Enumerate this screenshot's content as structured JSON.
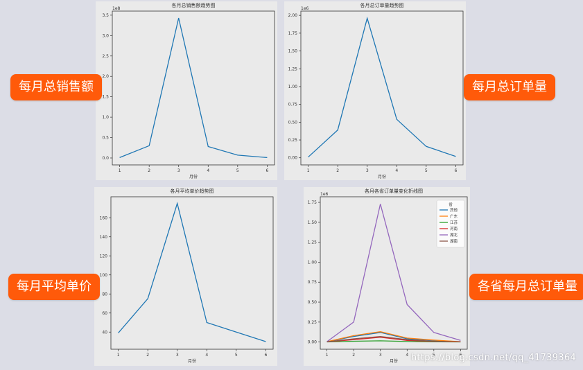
{
  "labels": {
    "sales": "每月总销售额",
    "orders": "每月总订单量",
    "avg_price": "每月平均单价",
    "province_orders": "各省每月总订单量"
  },
  "watermark": "https://blog.csdn.net/qq_41739364",
  "colors": {
    "line": "#1f77b4",
    "badge": "#ff5a0a"
  },
  "chart_data": [
    {
      "type": "line",
      "title": "各月总销售额趋势图",
      "xlabel": "月份",
      "ylabel": "",
      "offset_label": "1e8",
      "x": [
        1,
        2,
        3,
        4,
        5,
        6
      ],
      "series": [
        {
          "values": [
            0.01,
            0.3,
            3.43,
            0.28,
            0.07,
            0.01
          ],
          "color": "#1f77b4"
        }
      ],
      "xticks": [
        1,
        2,
        3,
        4,
        5,
        6
      ],
      "yticks": [
        0.0,
        0.5,
        1.0,
        1.5,
        2.0,
        2.5,
        3.0,
        3.5
      ],
      "ytick_labels": [
        "0.0",
        "0.5",
        "1.0",
        "1.5",
        "2.0",
        "2.5",
        "3.0",
        "3.5"
      ],
      "xlim": [
        0.75,
        6.25
      ],
      "ylim": [
        -0.17,
        3.6
      ],
      "grid": false
    },
    {
      "type": "line",
      "title": "各月总订单量趋势图",
      "xlabel": "月份",
      "ylabel": "",
      "offset_label": "1e6",
      "x": [
        1,
        2,
        3,
        4,
        5,
        6
      ],
      "series": [
        {
          "values": [
            0.01,
            0.39,
            1.96,
            0.54,
            0.16,
            0.02
          ],
          "color": "#1f77b4"
        }
      ],
      "xticks": [
        1,
        2,
        3,
        4,
        5,
        6
      ],
      "yticks": [
        0.0,
        0.25,
        0.5,
        0.75,
        1.0,
        1.25,
        1.5,
        1.75,
        2.0
      ],
      "ytick_labels": [
        "0.00",
        "0.25",
        "0.50",
        "0.75",
        "1.00",
        "1.25",
        "1.50",
        "1.75",
        "2.00"
      ],
      "xlim": [
        0.75,
        6.25
      ],
      "ylim": [
        -0.1,
        2.06
      ],
      "grid": false
    },
    {
      "type": "line",
      "title": "各月平均单价趋势图",
      "xlabel": "月份",
      "ylabel": "",
      "offset_label": "",
      "x": [
        1,
        2,
        3,
        4,
        5,
        6
      ],
      "series": [
        {
          "values": [
            39,
            75,
            175,
            50,
            40,
            30
          ],
          "color": "#1f77b4"
        }
      ],
      "xticks": [
        1,
        2,
        3,
        4,
        5,
        6
      ],
      "yticks": [
        40,
        60,
        80,
        100,
        120,
        140,
        160
      ],
      "ytick_labels": [
        "40",
        "60",
        "80",
        "100",
        "120",
        "140",
        "160"
      ],
      "xlim": [
        0.75,
        6.25
      ],
      "ylim": [
        22,
        182
      ],
      "grid": false
    },
    {
      "type": "line",
      "title": "各月各省订单量变化折线图",
      "xlabel": "月份",
      "ylabel": "",
      "offset_label": "1e6",
      "legend_title": "省",
      "legend_position": "top-right",
      "x": [
        1,
        2,
        3,
        4,
        5,
        6
      ],
      "series": [
        {
          "name": "其他",
          "values": [
            0.005,
            0.07,
            0.12,
            0.04,
            0.02,
            0.003
          ],
          "color": "#1f77b4"
        },
        {
          "name": "广东",
          "values": [
            0.005,
            0.08,
            0.13,
            0.05,
            0.025,
            0.004
          ],
          "color": "#ff7f0e"
        },
        {
          "name": "江苏",
          "values": [
            0.001,
            0.01,
            0.015,
            0.006,
            0.003,
            0.001
          ],
          "color": "#2ca02c"
        },
        {
          "name": "河南",
          "values": [
            0.002,
            0.03,
            0.06,
            0.02,
            0.008,
            0.002
          ],
          "color": "#d62728"
        },
        {
          "name": "湖北",
          "values": [
            0.005,
            0.25,
            1.73,
            0.47,
            0.12,
            0.02
          ],
          "color": "#9467bd"
        },
        {
          "name": "湖南",
          "values": [
            0.003,
            0.04,
            0.07,
            0.03,
            0.01,
            0.002
          ],
          "color": "#8c564b"
        }
      ],
      "xticks": [
        1,
        2,
        3,
        4,
        5,
        6
      ],
      "yticks": [
        0.0,
        0.25,
        0.5,
        0.75,
        1.0,
        1.25,
        1.5,
        1.75
      ],
      "ytick_labels": [
        "0.00",
        "0.25",
        "0.50",
        "0.75",
        "1.00",
        "1.25",
        "1.50",
        "1.75"
      ],
      "xlim": [
        0.75,
        6.25
      ],
      "ylim": [
        -0.09,
        1.82
      ],
      "grid": false
    }
  ]
}
